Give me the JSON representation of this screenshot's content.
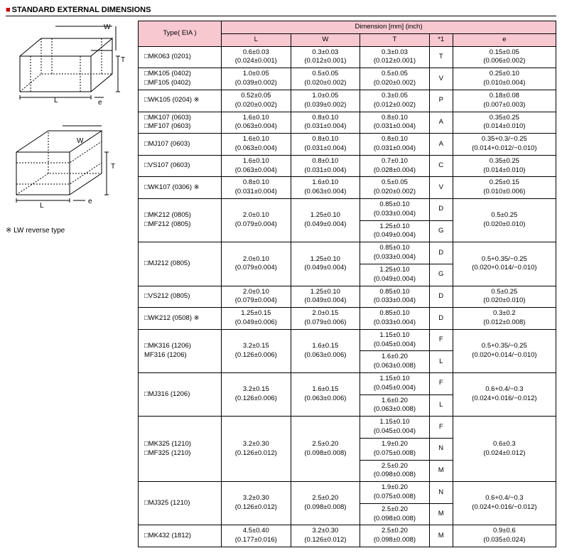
{
  "title": "STANDARD EXTERNAL DIMENSIONS",
  "note": "※ LW reverse type",
  "diagram_labels": {
    "L": "L",
    "W": "W",
    "T": "T",
    "e": "e"
  },
  "header": {
    "type": "Type( EIA )",
    "dim": "Dimension [mm]  (inch)",
    "L": "L",
    "W": "W",
    "T": "T",
    "star": "*1",
    "e": "e"
  },
  "colors": {
    "header_bg": "#f8c8d0",
    "bullet": "#c00"
  },
  "rows": [
    {
      "type": [
        "□MK063 (0201)"
      ],
      "L": [
        "0.6±0.03",
        "(0.024±0.001)"
      ],
      "W": [
        "0.3±0.03",
        "(0.012±0.001)"
      ],
      "T": [
        {
          "v": [
            "0.3±0.03",
            "(0.012±0.001)"
          ],
          "s": "T"
        }
      ],
      "e": [
        "0.15±0.05",
        "(0.006±0.002)"
      ]
    },
    {
      "type": [
        "□MK105 (0402)",
        "□MF105 (0402)"
      ],
      "L": [
        "1.0±0.05",
        "(0.039±0.002)"
      ],
      "W": [
        "0.5±0.05",
        "(0.020±0.002)"
      ],
      "T": [
        {
          "v": [
            "0.5±0.05",
            "(0.020±0.002)"
          ],
          "s": "V"
        }
      ],
      "e": [
        "0.25±0.10",
        "(0.010±0.004)"
      ]
    },
    {
      "type": [
        "□WK105 (0204) ※"
      ],
      "L": [
        "0.52±0.05",
        "(0.020±0.002)"
      ],
      "W": [
        "1.0±0.05",
        "(0.039±0.002)"
      ],
      "T": [
        {
          "v": [
            "0.3±0.05",
            "(0.012±0.002)"
          ],
          "s": "P"
        }
      ],
      "e": [
        "0.18±0.08",
        "(0.007±0.003)"
      ]
    },
    {
      "type": [
        "□MK107 (0603)",
        "□MF107 (0603)"
      ],
      "L": [
        "1.6±0.10",
        "(0.063±0.004)"
      ],
      "W": [
        "0.8±0.10",
        "(0.031±0.004)"
      ],
      "T": [
        {
          "v": [
            "0.8±0.10",
            "(0.031±0.004)"
          ],
          "s": "A"
        }
      ],
      "e": [
        "0.35±0.25",
        "(0.014±0.010)"
      ]
    },
    {
      "type": [
        "□MJ107 (0603)"
      ],
      "L": [
        "1.6±0.10",
        "(0.063±0.004)"
      ],
      "W": [
        "0.8±0.10",
        "(0.031±0.004)"
      ],
      "T": [
        {
          "v": [
            "0.8±0.10",
            "(0.031±0.004)"
          ],
          "s": "A"
        }
      ],
      "e": [
        "0.35+0.3/−0.25",
        "(0.014+0.012/−0.010)"
      ]
    },
    {
      "type": [
        "□VS107 (0603)"
      ],
      "L": [
        "1.6±0.10",
        "(0.063±0.004)"
      ],
      "W": [
        "0.8±0.10",
        "(0.031±0.004)"
      ],
      "T": [
        {
          "v": [
            "0.7±0.10",
            "(0.028±0.004)"
          ],
          "s": "C"
        }
      ],
      "e": [
        "0.35±0.25",
        "(0.014±0.010)"
      ]
    },
    {
      "type": [
        "□WK107 (0306) ※"
      ],
      "L": [
        "0.8±0.10",
        "(0.031±0.004)"
      ],
      "W": [
        "1.6±0.10",
        "(0.063±0.004)"
      ],
      "T": [
        {
          "v": [
            "0.5±0.05",
            "(0.020±0.002)"
          ],
          "s": "V"
        }
      ],
      "e": [
        "0.25±0.15",
        "(0.010±0.006)"
      ]
    },
    {
      "type": [
        "□MK212 (0805)",
        "□MF212 (0805)"
      ],
      "L": [
        "2.0±0.10",
        "(0.079±0.004)"
      ],
      "W": [
        "1.25±0.10",
        "(0.049±0.004)"
      ],
      "T": [
        {
          "v": [
            "0.85±0.10",
            "(0.033±0.004)"
          ],
          "s": "D"
        },
        {
          "v": [
            "1.25±0.10",
            "(0.049±0.004)"
          ],
          "s": "G"
        }
      ],
      "e": [
        "0.5±0.25",
        "(0.020±0.010)"
      ]
    },
    {
      "type": [
        "□MJ212 (0805)"
      ],
      "L": [
        "2.0±0.10",
        "(0.079±0.004)"
      ],
      "W": [
        "1.25±0.10",
        "(0.049±0.004)"
      ],
      "T": [
        {
          "v": [
            "0.85±0.10",
            "(0.033±0.004)"
          ],
          "s": "D"
        },
        {
          "v": [
            "1.25±0.10",
            "(0.049±0.004)"
          ],
          "s": "G"
        }
      ],
      "e": [
        "0.5+0.35/−0.25",
        "(0.020+0.014/−0.010)"
      ]
    },
    {
      "type": [
        "□VS212 (0805)"
      ],
      "L": [
        "2.0±0.10",
        "(0.079±0.004)"
      ],
      "W": [
        "1.25±0.10",
        "(0.049±0.004)"
      ],
      "T": [
        {
          "v": [
            "0.85±0.10",
            "(0.033±0.004)"
          ],
          "s": "D"
        }
      ],
      "e": [
        "0.5±0.25",
        "(0.020±0.010)"
      ]
    },
    {
      "type": [
        "□WK212 (0508) ※"
      ],
      "L": [
        "1.25±0.15",
        "(0.049±0.006)"
      ],
      "W": [
        "2.0±0.15",
        "(0.079±0.006)"
      ],
      "T": [
        {
          "v": [
            "0.85±0.10",
            "(0.033±0.004)"
          ],
          "s": "D"
        }
      ],
      "e": [
        "0.3±0.2",
        "(0.012±0.008)"
      ]
    },
    {
      "type": [
        "□MK316 (1206)",
        "MF316 (1206)"
      ],
      "L": [
        "3.2±0.15",
        "(0.126±0.006)"
      ],
      "W": [
        "1.6±0.15",
        "(0.063±0.006)"
      ],
      "T": [
        {
          "v": [
            "1.15±0.10",
            "(0.045±0.004)"
          ],
          "s": "F"
        },
        {
          "v": [
            "1.6±0.20",
            "(0.063±0.008)"
          ],
          "s": "L"
        }
      ],
      "e": [
        "0.5+0.35/−0.25",
        "(0.020+0.014/−0.010)"
      ]
    },
    {
      "type": [
        "□MJ316 (1206)"
      ],
      "L": [
        "3.2±0.15",
        "(0.126±0.006)"
      ],
      "W": [
        "1.6±0.15",
        "(0.063±0.006)"
      ],
      "T": [
        {
          "v": [
            "1.15±0.10",
            "(0.045±0.004)"
          ],
          "s": "F"
        },
        {
          "v": [
            "1.6±0.20",
            "(0.063±0.008)"
          ],
          "s": "L"
        }
      ],
      "e": [
        "0.6+0.4/−0.3",
        "(0.024+0.016/−0.012)"
      ]
    },
    {
      "type": [
        "□MK325 (1210)",
        "□MF325 (1210)"
      ],
      "L": [
        "3.2±0.30",
        "(0.126±0.012)"
      ],
      "W": [
        "2.5±0.20",
        "(0.098±0.008)"
      ],
      "T": [
        {
          "v": [
            "1.15±0.10",
            "(0.045±0.004)"
          ],
          "s": "F"
        },
        {
          "v": [
            "1.9±0.20",
            "(0.075±0.008)"
          ],
          "s": "N"
        },
        {
          "v": [
            "2.5±0.20",
            "(0.098±0.008)"
          ],
          "s": "M"
        }
      ],
      "e": [
        "0.6±0.3",
        "(0.024±0.012)"
      ]
    },
    {
      "type": [
        "□MJ325 (1210)"
      ],
      "L": [
        "3.2±0.30",
        "(0.126±0.012)"
      ],
      "W": [
        "2.5±0.20",
        "(0.098±0.008)"
      ],
      "T": [
        {
          "v": [
            "1.9±0.20",
            "(0.075±0.008)"
          ],
          "s": "N"
        },
        {
          "v": [
            "2.5±0.20",
            "(0.098±0.008)"
          ],
          "s": "M"
        }
      ],
      "e": [
        "0.6+0.4/−0.3",
        "(0.024+0.016/−0.012)"
      ]
    },
    {
      "type": [
        "□MK432 (1812)"
      ],
      "L": [
        "4.5±0.40",
        "(0.177±0.016)"
      ],
      "W": [
        "3.2±0.30",
        "(0.126±0.012)"
      ],
      "T": [
        {
          "v": [
            "2.5±0.20",
            "(0.098±0.008)"
          ],
          "s": "M"
        }
      ],
      "e": [
        "0.9±0.6",
        "(0.035±0.024)"
      ]
    }
  ]
}
